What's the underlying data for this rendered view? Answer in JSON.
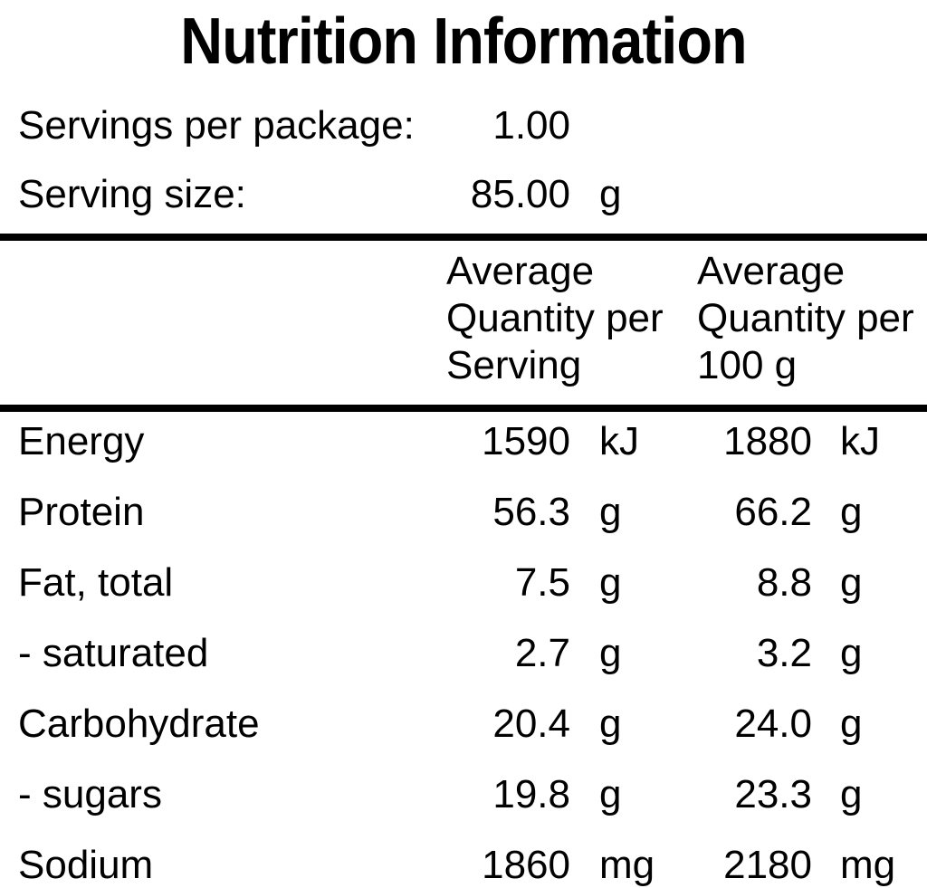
{
  "title": "Nutrition Information",
  "serving_info": {
    "servings_label": "Servings per package:",
    "servings_value": "1.00",
    "serving_size_label": "Serving size:",
    "serving_size_value": "85.00",
    "serving_size_unit": "g"
  },
  "columns": {
    "per_serving_header": "Average\nQuantity per\nServing",
    "per_100g_header": "Average\nQuantity per\n100 g"
  },
  "table": {
    "rows": [
      {
        "label": "Energy",
        "per_serving": "1590",
        "per_serving_unit": "kJ",
        "per_100g": "1880",
        "per_100g_unit": "kJ"
      },
      {
        "label": "Protein",
        "per_serving": "56.3",
        "per_serving_unit": "g",
        "per_100g": "66.2",
        "per_100g_unit": "g"
      },
      {
        "label": "Fat, total",
        "per_serving": "7.5",
        "per_serving_unit": "g",
        "per_100g": "8.8",
        "per_100g_unit": "g"
      },
      {
        "label": "- saturated",
        "per_serving": "2.7",
        "per_serving_unit": "g",
        "per_100g": "3.2",
        "per_100g_unit": "g"
      },
      {
        "label": "Carbohydrate",
        "per_serving": "20.4",
        "per_serving_unit": "g",
        "per_100g": "24.0",
        "per_100g_unit": "g"
      },
      {
        "label": "- sugars",
        "per_serving": "19.8",
        "per_serving_unit": "g",
        "per_100g": "23.3",
        "per_100g_unit": "g"
      },
      {
        "label": "Sodium",
        "per_serving": "1860",
        "per_serving_unit": "mg",
        "per_100g": "2180",
        "per_100g_unit": "mg"
      }
    ]
  },
  "colors": {
    "text": "#000000",
    "background": "#ffffff",
    "rule": "#000000"
  }
}
